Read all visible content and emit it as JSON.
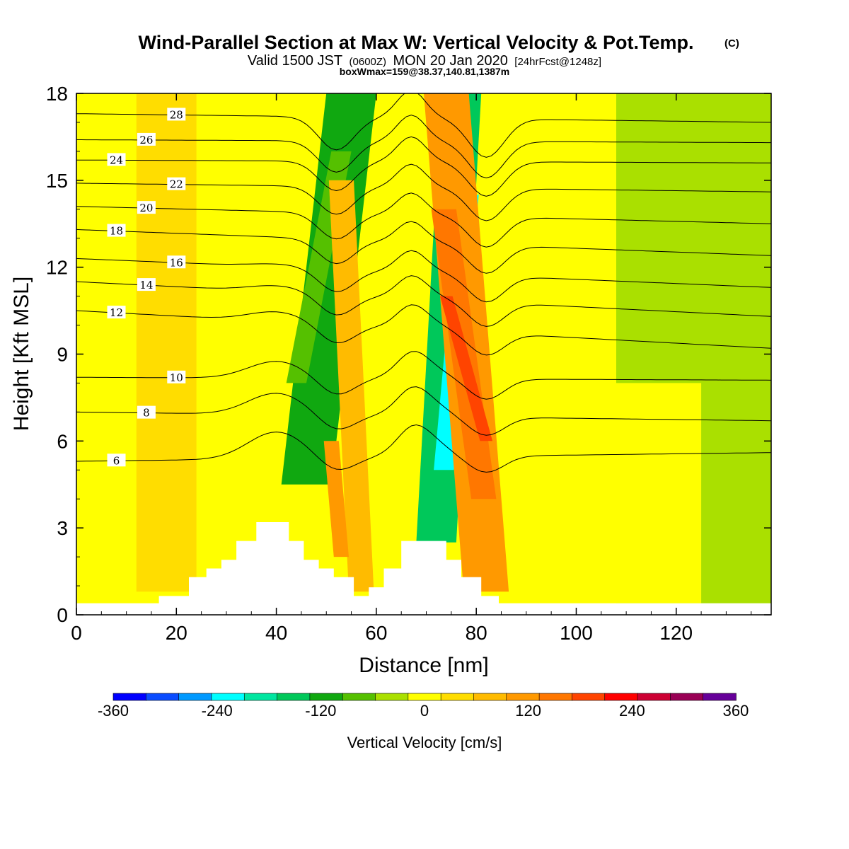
{
  "chart_data": {
    "type": "heatmap",
    "title": "Wind-Parallel Section at Max W: Vertical Velocity & Pot.Temp.",
    "title_mark": "(C)",
    "subtitle_main": "Valid 1500 JST",
    "subtitle_z": "(0600Z)",
    "subtitle_date": "MON 20 Jan 2020",
    "subtitle_fcst": "[24hrFcst@1248z]",
    "subtitle2": "boxWmax=159@38.37,140.81,1387m",
    "xlabel": "Distance [nm]",
    "ylabel": "Height [Kft MSL]",
    "xlim": [
      0,
      139
    ],
    "ylim": [
      0,
      18
    ],
    "xticks": [
      "0",
      "20",
      "40",
      "60",
      "80",
      "100",
      "120"
    ],
    "yticks": [
      "0",
      "3",
      "6",
      "9",
      "12",
      "15",
      "18"
    ],
    "colorbar": {
      "label": "Vertical Velocity [cm/s]",
      "min": -360,
      "max": 360,
      "step": 40,
      "tick_labels": [
        "-360",
        "-240",
        "-120",
        "0",
        "120",
        "240",
        "360"
      ],
      "colors": [
        "#0000ff",
        "#0a4cff",
        "#0099ff",
        "#00ffff",
        "#00e6a0",
        "#00c85a",
        "#10a810",
        "#55c000",
        "#aae000",
        "#ffff00",
        "#ffdd00",
        "#ffbb00",
        "#ff9900",
        "#ff7700",
        "#ff4400",
        "#ff0000",
        "#cc0033",
        "#990055",
        "#660099"
      ]
    },
    "terrain_kft": [
      [
        0,
        0.4
      ],
      [
        16.5,
        0.4
      ],
      [
        16.5,
        0.65
      ],
      [
        22.5,
        0.65
      ],
      [
        22.5,
        1.3
      ],
      [
        26,
        1.3
      ],
      [
        26,
        1.6
      ],
      [
        29,
        1.6
      ],
      [
        29,
        1.9
      ],
      [
        32,
        1.9
      ],
      [
        32,
        2.55
      ],
      [
        36,
        2.55
      ],
      [
        36,
        3.2
      ],
      [
        42.5,
        3.2
      ],
      [
        42.5,
        2.55
      ],
      [
        45.5,
        2.55
      ],
      [
        45.5,
        1.9
      ],
      [
        48.5,
        1.9
      ],
      [
        48.5,
        1.6
      ],
      [
        51.5,
        1.6
      ],
      [
        51.5,
        1.3
      ],
      [
        55.5,
        1.3
      ],
      [
        55.5,
        0.65
      ],
      [
        58.5,
        0.65
      ],
      [
        58.5,
        0.95
      ],
      [
        61.5,
        0.95
      ],
      [
        61.5,
        1.6
      ],
      [
        65,
        1.6
      ],
      [
        65,
        2.55
      ],
      [
        74,
        2.55
      ],
      [
        74,
        1.9
      ],
      [
        77,
        1.9
      ],
      [
        77,
        1.3
      ],
      [
        81,
        1.3
      ],
      [
        81,
        0.65
      ],
      [
        84.5,
        0.65
      ],
      [
        84.5,
        0.4
      ],
      [
        139,
        0.4
      ]
    ],
    "w_bands": [
      {
        "x": 46,
        "w": 10,
        "value": -120,
        "tilt": 9,
        "zmin": 4.5,
        "zmax": 18
      },
      {
        "x": 44,
        "w": 4,
        "value": -80,
        "tilt": 9,
        "zmin": 8,
        "zmax": 16
      },
      {
        "x": 57,
        "w": 5,
        "value": 80,
        "tilt": -4,
        "zmin": 0.8,
        "zmax": 15
      },
      {
        "x": 53,
        "w": 3,
        "value": 120,
        "tilt": -2,
        "zmin": 2,
        "zmax": 6
      },
      {
        "x": 72,
        "w": 8,
        "value": -150,
        "tilt": 5,
        "zmin": 2.5,
        "zmax": 18
      },
      {
        "x": 73.5,
        "w": 4,
        "value": -240,
        "tilt": 5,
        "zmin": 5,
        "zmax": 14.5
      },
      {
        "x": 82,
        "w": 9,
        "value": 120,
        "tilt": -8,
        "zmin": 0.8,
        "zmax": 18
      },
      {
        "x": 81.5,
        "w": 5,
        "value": 160,
        "tilt": -8,
        "zmin": 4,
        "zmax": 14
      },
      {
        "x": 82,
        "w": 2.5,
        "value": 220,
        "tilt": -8,
        "zmin": 6,
        "zmax": 11
      },
      {
        "x": 18,
        "w": 12,
        "value": 40,
        "tilt": 0,
        "zmin": 0.8,
        "zmax": 18
      },
      {
        "x": 114,
        "w": 22,
        "value": 0,
        "tilt": 0,
        "zmin": 0.4,
        "zmax": 8
      },
      {
        "x": 3,
        "w": 3,
        "value": 0,
        "tilt": 0,
        "zmin": 0.4,
        "zmax": 4.5
      }
    ],
    "theta_contours": [
      {
        "label": "6",
        "z_left": 5.3,
        "z_right": 5.6
      },
      {
        "label": "8",
        "z_left": 7.0,
        "z_right": 6.7
      },
      {
        "label": "10",
        "z_left": 8.2,
        "z_right": 8.1
      },
      {
        "label": "12",
        "z_left": 10.5,
        "z_right": 9.2
      },
      {
        "label": "14",
        "z_left": 11.5,
        "z_right": 10.3
      },
      {
        "label": "16",
        "z_left": 12.3,
        "z_right": 11.3
      },
      {
        "label": "18",
        "z_left": 13.3,
        "z_right": 12.4
      },
      {
        "label": "20",
        "z_left": 14.1,
        "z_right": 13.5
      },
      {
        "label": "22",
        "z_left": 14.9,
        "z_right": 14.6
      },
      {
        "label": "24",
        "z_left": 15.7,
        "z_right": 15.6
      },
      {
        "label": "26",
        "z_left": 16.4,
        "z_right": 16.3
      },
      {
        "label": "28",
        "z_left": 17.3,
        "z_right": 17.0
      }
    ]
  }
}
